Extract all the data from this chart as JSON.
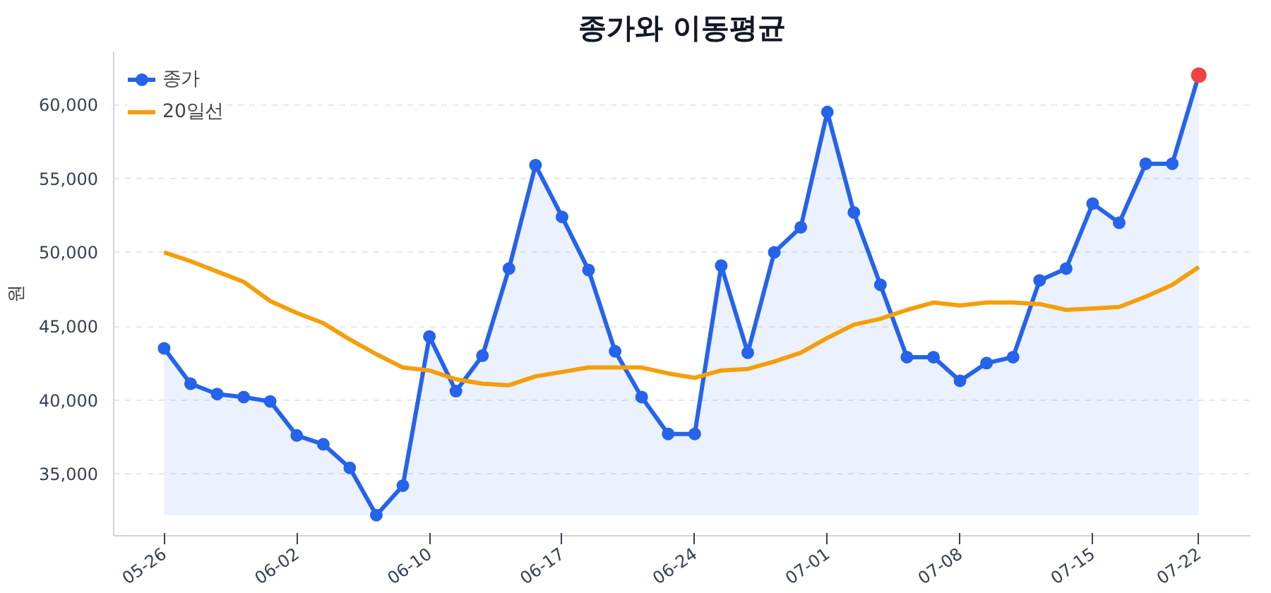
{
  "chart_data": {
    "type": "line",
    "title": "종가와 이동평균",
    "ylabel": "원",
    "categories": [
      "05-26",
      null,
      null,
      null,
      null,
      "06-02",
      null,
      null,
      null,
      null,
      "06-10",
      null,
      null,
      null,
      null,
      "06-17",
      null,
      null,
      null,
      null,
      "06-24",
      null,
      null,
      null,
      null,
      "07-01",
      null,
      null,
      null,
      null,
      "07-08",
      null,
      null,
      null,
      null,
      "07-15",
      null,
      null,
      null,
      "07-22"
    ],
    "series": [
      {
        "name": "종가",
        "type": "area",
        "color": "#2563eb",
        "marker": "circle",
        "values": [
          43500,
          41100,
          40400,
          40200,
          39900,
          37600,
          37000,
          35400,
          32200,
          34200,
          44300,
          40600,
          43000,
          48900,
          55900,
          52400,
          48800,
          43300,
          40200,
          37700,
          37700,
          49100,
          43200,
          50000,
          51700,
          59500,
          52700,
          47800,
          42900,
          42900,
          41300,
          42500,
          42900,
          48100,
          48900,
          53300,
          52000,
          56000,
          56000,
          62000
        ]
      },
      {
        "name": "20일선",
        "color": "#f59e0b",
        "marker": "none",
        "values": [
          50000,
          49400,
          48700,
          48000,
          46700,
          45900,
          45200,
          44100,
          43100,
          42200,
          42000,
          41400,
          41100,
          41000,
          41600,
          41900,
          42200,
          42200,
          42200,
          41800,
          41500,
          42000,
          42100,
          42600,
          43200,
          44200,
          45100,
          45500,
          46100,
          46600,
          46400,
          46600,
          46600,
          46500,
          46100,
          46200,
          46300,
          47000,
          47800,
          49000
        ]
      },
      {
        "type": "scatter",
        "color": "#ef4444",
        "x": [
          "07-22"
        ],
        "values": [
          62000
        ]
      }
    ],
    "ylim": [
      30800,
      63600
    ],
    "yticks": [
      {
        "value": 35000,
        "label": "35,000"
      },
      {
        "value": 40000,
        "label": "40,000"
      },
      {
        "value": 45000,
        "label": "45,000"
      },
      {
        "value": 50000,
        "label": "50,000"
      },
      {
        "value": 55000,
        "label": "55,000"
      },
      {
        "value": 60000,
        "label": "60,000"
      }
    ],
    "grid": "y",
    "legend": "top left",
    "line_style": "solid"
  }
}
